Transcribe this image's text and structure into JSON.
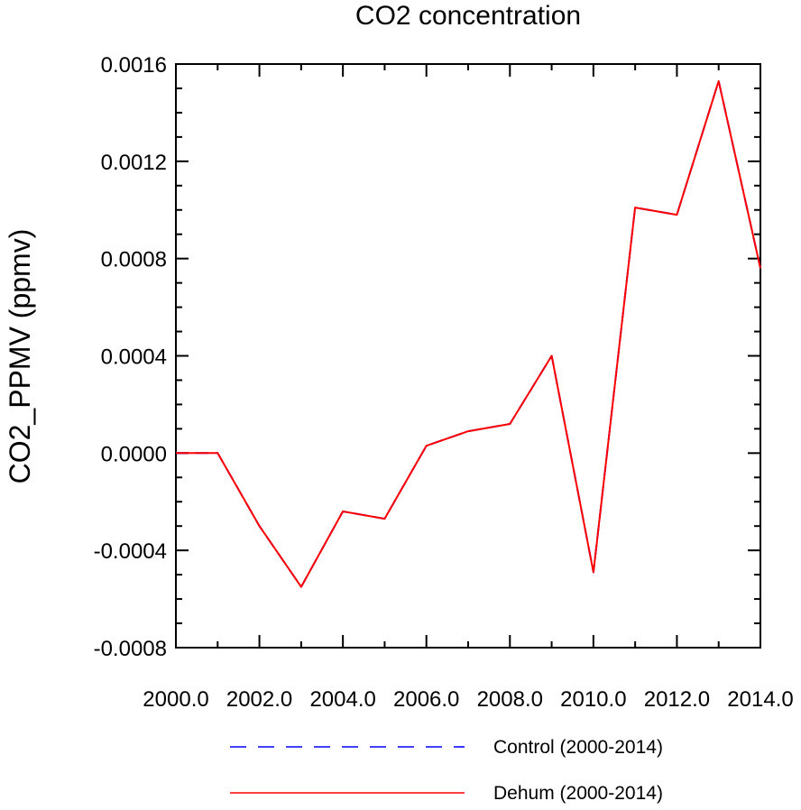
{
  "chart_data": {
    "type": "line",
    "title": "CO2 concentration",
    "xlabel": "",
    "ylabel": "CO2_PPMV  (ppmv)",
    "xlim": [
      2000,
      2014
    ],
    "ylim": [
      -0.0008,
      0.0016
    ],
    "x": [
      2000,
      2001,
      2002,
      2003,
      2004,
      2005,
      2006,
      2007,
      2008,
      2009,
      2010,
      2011,
      2012,
      2013,
      2014
    ],
    "xticks": [
      2000,
      2002,
      2004,
      2006,
      2008,
      2010,
      2012,
      2014
    ],
    "xtick_labels": [
      "2000.0",
      "2002.0",
      "2004.0",
      "2006.0",
      "2008.0",
      "2010.0",
      "2012.0",
      "2014.0"
    ],
    "yticks": [
      -0.0008,
      -0.0004,
      0.0,
      0.0004,
      0.0008,
      0.0012,
      0.0016
    ],
    "ytick_labels": [
      "-0.0008",
      "-0.0004",
      "0.0000",
      "0.0004",
      "0.0008",
      "0.0012",
      "0.0016"
    ],
    "grid": false,
    "legend_position": "bottom",
    "series": [
      {
        "name": "Control (2000-2014)",
        "color": "#0000ff",
        "style": "dashed",
        "values": [
          0.0,
          0.0,
          -0.0003,
          -0.00055,
          -0.00024,
          -0.00027,
          3e-05,
          9e-05,
          0.00012,
          0.0004,
          -0.00049,
          0.00101,
          0.00098,
          0.00153,
          0.00076
        ]
      },
      {
        "name": "Dehum (2000-2014)",
        "color": "#ff0000",
        "style": "solid",
        "values": [
          0.0,
          0.0,
          -0.0003,
          -0.00055,
          -0.00024,
          -0.00027,
          3e-05,
          9e-05,
          0.00012,
          0.0004,
          -0.00049,
          0.00101,
          0.00098,
          0.00153,
          0.00076
        ]
      }
    ]
  }
}
